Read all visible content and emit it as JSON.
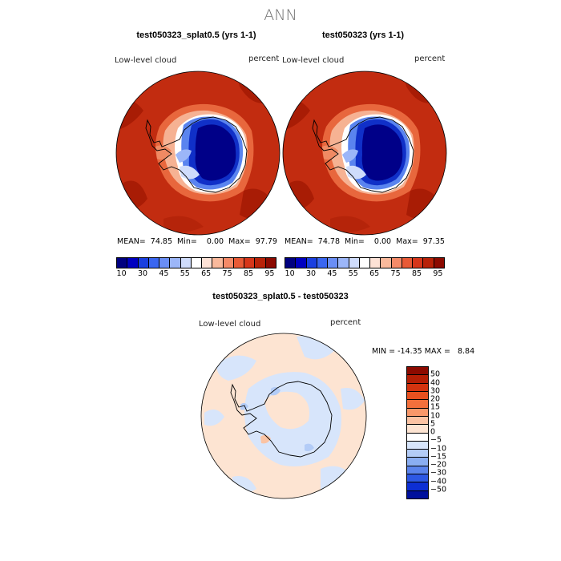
{
  "season": "ANN",
  "panels": [
    {
      "title": "test050323_splat0.5 (yrs 1-1)",
      "variable": "Low-level cloud",
      "units": "percent",
      "stats": "MEAN=  74.85  Min=    0.00  Max=  97.79"
    },
    {
      "title": "test050323 (yrs 1-1)",
      "variable": "Low-level cloud",
      "units": "percent",
      "stats": "MEAN=  74.78  Min=    0.00  Max=  97.35"
    }
  ],
  "top_colorbar": {
    "colors": [
      "#000080",
      "#0000c0",
      "#1a3fe0",
      "#3a66f0",
      "#6a8ef5",
      "#9cb6f8",
      "#cfdcfb",
      "#ffffff",
      "#fde2d6",
      "#f9b99c",
      "#f48a68",
      "#e85a36",
      "#d6361a",
      "#b82208",
      "#8c0a00"
    ],
    "labels": [
      "10",
      "30",
      "45",
      "55",
      "65",
      "75",
      "85",
      "95"
    ]
  },
  "diff_panel": {
    "title": "test050323_splat0.5 - test050323",
    "variable": "Low-level cloud",
    "units": "percent",
    "minmax": "MIN = -14.35 MAX =   8.84"
  },
  "diff_colorbar": {
    "colors": [
      "#8c0a00",
      "#b41e05",
      "#d3330f",
      "#e8501f",
      "#f3703c",
      "#f8986a",
      "#fbc3a3",
      "#fde4d2",
      "#ffffff",
      "#d7e5fb",
      "#b3ccf7",
      "#8aaef2",
      "#5b84ec",
      "#2d58e4",
      "#0d2fd4",
      "#00109c"
    ],
    "labels": [
      "50",
      "40",
      "30",
      "20",
      "15",
      "10",
      "5",
      "0",
      "−5",
      "−10",
      "−15",
      "−20",
      "−30",
      "−40",
      "−50"
    ]
  }
}
